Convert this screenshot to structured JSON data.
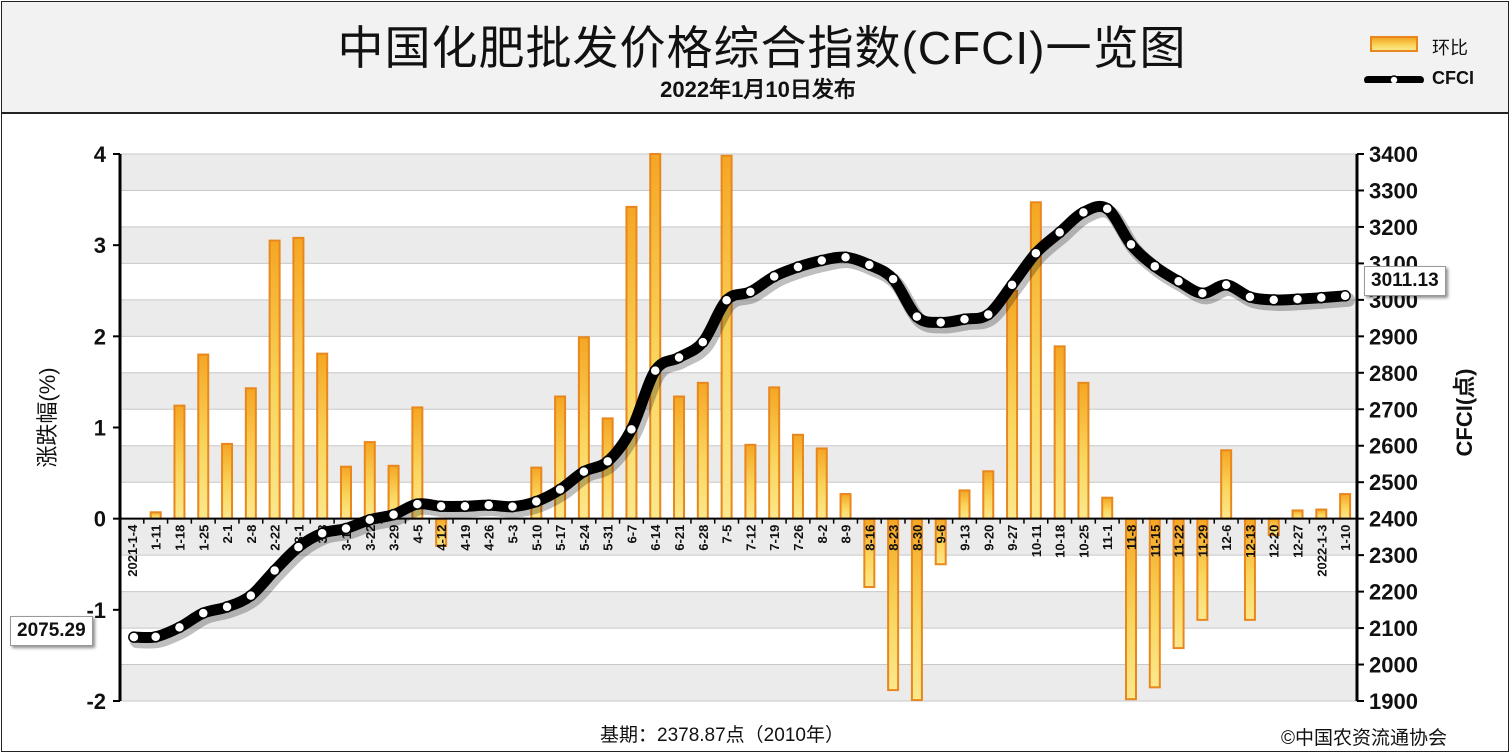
{
  "header": {
    "title": "中国化肥批发价格综合指数(CFCI)一览图",
    "subtitle": "2022年1月10日发布"
  },
  "legend": {
    "bar_label": "环比",
    "line_label": "CFCI",
    "bar_color": "#f5a623",
    "bar_border": "#e8871e",
    "line_color": "#000000"
  },
  "footer": {
    "base_period": "基期：2378.87点（2010年）",
    "copyright": "©中国农资流通协会"
  },
  "callouts": {
    "start": "2075.29",
    "end": "3011.13"
  },
  "chart_data": {
    "type": "bar+line",
    "categories": [
      "2021-1-4",
      "1-11",
      "1-18",
      "1-25",
      "2-1",
      "2-8",
      "2-22",
      "3-1",
      "3-8",
      "3-15",
      "3-22",
      "3-29",
      "4-5",
      "4-12",
      "4-19",
      "4-26",
      "5-3",
      "5-10",
      "5-17",
      "5-24",
      "5-31",
      "6-7",
      "6-14",
      "6-21",
      "6-28",
      "7-5",
      "7-12",
      "7-19",
      "7-26",
      "8-2",
      "8-9",
      "8-16",
      "8-23",
      "8-30",
      "9-6",
      "9-13",
      "9-20",
      "9-27",
      "10-11",
      "10-18",
      "10-25",
      "11-1",
      "11-8",
      "11-15",
      "11-22",
      "11-29",
      "12-6",
      "12-13",
      "12-20",
      "12-27",
      "2022-1-3",
      "1-10"
    ],
    "series": [
      {
        "name": "环比",
        "axis": "left",
        "values": [
          0,
          0.07,
          1.24,
          1.8,
          0.82,
          1.43,
          3.05,
          3.08,
          1.81,
          0.57,
          0.84,
          0.58,
          1.22,
          -0.3,
          0,
          0,
          0,
          0.56,
          1.34,
          1.99,
          1.1,
          3.42,
          4.0,
          1.34,
          1.49,
          3.98,
          0.81,
          1.44,
          0.92,
          0.77,
          0.27,
          -0.75,
          -1.88,
          -1.99,
          -0.5,
          0.31,
          0.52,
          2.5,
          3.47,
          1.89,
          1.49,
          0.23,
          -1.98,
          -1.85,
          -1.42,
          -1.11,
          0.75,
          -1.11,
          -0.18,
          0.09,
          0.1,
          0.27
        ]
      },
      {
        "name": "CFCI",
        "axis": "right",
        "values": [
          2075.29,
          2076,
          2102,
          2141,
          2158,
          2189,
          2258,
          2322,
          2360,
          2373,
          2397,
          2411,
          2440,
          2434,
          2434,
          2437,
          2433,
          2447,
          2480,
          2529,
          2557,
          2645,
          2806,
          2842,
          2884,
          2999,
          3022,
          3064,
          3090,
          3108,
          3117,
          3096,
          3057,
          2954,
          2938,
          2947,
          2960,
          3041,
          3128,
          3185,
          3240,
          3250,
          3152,
          3092,
          3051,
          3018,
          3041,
          3008,
          3000,
          3002,
          3006,
          3011.13
        ]
      }
    ],
    "y_left": {
      "label": "涨跌幅(%)",
      "min": -2,
      "max": 4,
      "ticks": [
        -2,
        -1,
        0,
        1,
        2,
        3,
        4
      ]
    },
    "y_right": {
      "label": "CFCI(点)",
      "min": 1900,
      "max": 3400,
      "ticks": [
        1900,
        2000,
        2100,
        2200,
        2300,
        2400,
        2500,
        2600,
        2700,
        2800,
        2900,
        3000,
        3100,
        3200,
        3300,
        3400
      ]
    },
    "grid": true,
    "legend_position": "top-right"
  }
}
